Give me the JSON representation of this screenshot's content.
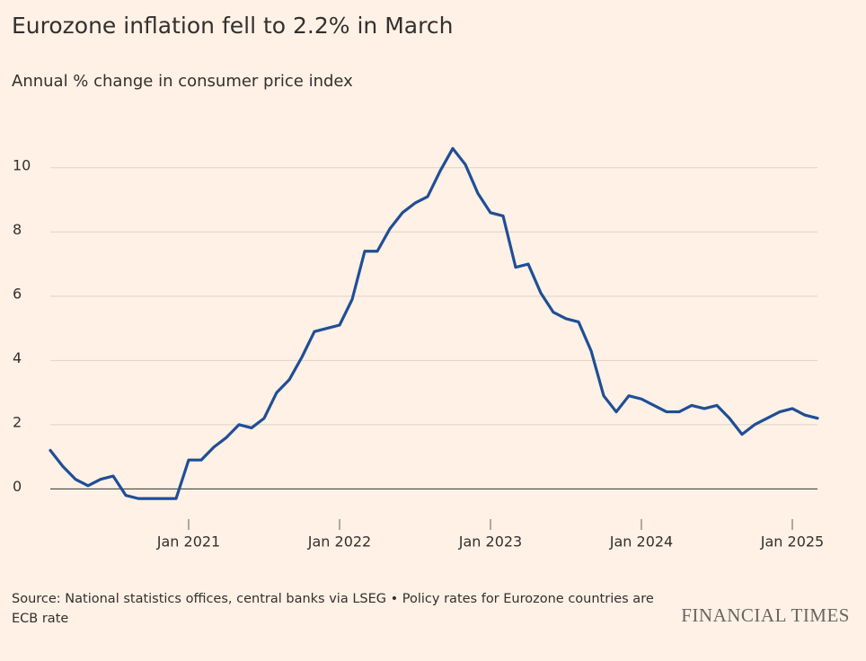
{
  "chart_data": {
    "type": "line",
    "title": "Eurozone inflation fell to 2.2% in March",
    "subtitle": "Annual % change in consumer price index",
    "source": "Source: National statistics offices, central banks via LSEG • Policy rates for Eurozone countries are ECB rate",
    "brand": "FINANCIAL TIMES",
    "x": [
      "2020-02",
      "2020-03",
      "2020-04",
      "2020-05",
      "2020-06",
      "2020-07",
      "2020-08",
      "2020-09",
      "2020-10",
      "2020-11",
      "2020-12",
      "2021-01",
      "2021-02",
      "2021-03",
      "2021-04",
      "2021-05",
      "2021-06",
      "2021-07",
      "2021-08",
      "2021-09",
      "2021-10",
      "2021-11",
      "2021-12",
      "2022-01",
      "2022-02",
      "2022-03",
      "2022-04",
      "2022-05",
      "2022-06",
      "2022-07",
      "2022-08",
      "2022-09",
      "2022-10",
      "2022-11",
      "2022-12",
      "2023-01",
      "2023-02",
      "2023-03",
      "2023-04",
      "2023-05",
      "2023-06",
      "2023-07",
      "2023-08",
      "2023-09",
      "2023-10",
      "2023-11",
      "2023-12",
      "2024-01",
      "2024-02",
      "2024-03",
      "2024-04",
      "2024-05",
      "2024-06",
      "2024-07",
      "2024-08",
      "2024-09",
      "2024-10",
      "2024-11",
      "2024-12",
      "2025-01",
      "2025-02",
      "2025-03"
    ],
    "series": [
      {
        "name": "Eurozone",
        "color": "#1f4e96",
        "values": [
          1.2,
          0.7,
          0.3,
          0.1,
          0.3,
          0.4,
          -0.2,
          -0.3,
          -0.3,
          -0.3,
          -0.3,
          0.9,
          0.9,
          1.3,
          1.6,
          2.0,
          1.9,
          2.2,
          3.0,
          3.4,
          4.1,
          4.9,
          5.0,
          5.1,
          5.9,
          7.4,
          7.4,
          8.1,
          8.6,
          8.9,
          9.1,
          9.9,
          10.6,
          10.1,
          9.2,
          8.6,
          8.5,
          6.9,
          7.0,
          6.1,
          5.5,
          5.3,
          5.2,
          4.3,
          2.9,
          2.4,
          2.9,
          2.8,
          2.6,
          2.4,
          2.4,
          2.6,
          2.5,
          2.6,
          2.2,
          1.7,
          2.0,
          2.2,
          2.4,
          2.5,
          2.3,
          2.2
        ]
      }
    ],
    "xlim": [
      "2020-02",
      "2025-03"
    ],
    "xticks": [
      {
        "value": "2021-01",
        "label": "Jan 2021"
      },
      {
        "value": "2022-01",
        "label": "Jan 2022"
      },
      {
        "value": "2023-01",
        "label": "Jan 2023"
      },
      {
        "value": "2024-01",
        "label": "Jan 2024"
      },
      {
        "value": "2025-01",
        "label": "Jan 2025"
      }
    ],
    "ylim": [
      -0.8,
      11
    ],
    "yticks": [
      0,
      2,
      4,
      6,
      8,
      10
    ],
    "grid": true
  }
}
